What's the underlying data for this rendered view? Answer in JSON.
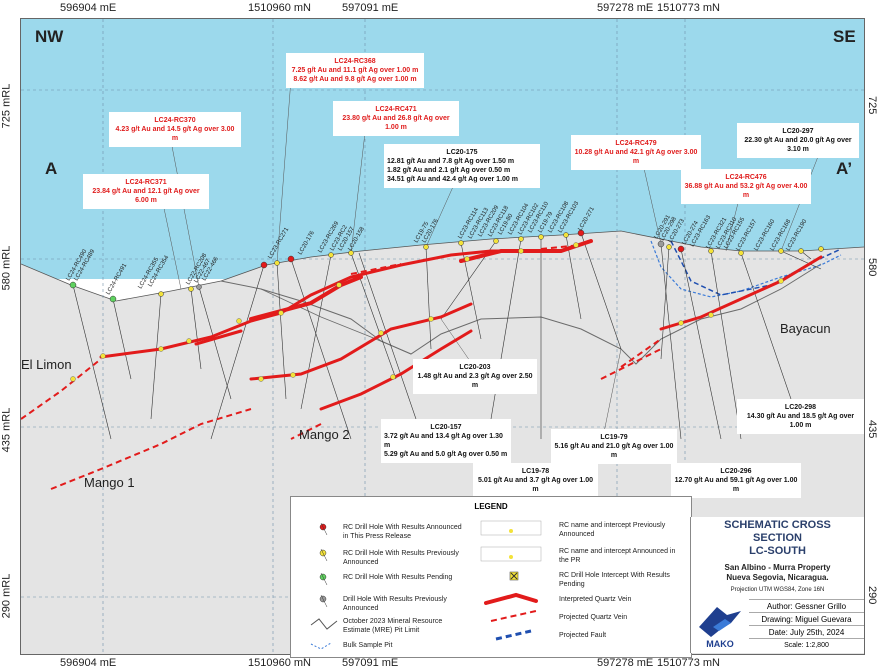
{
  "coords": {
    "top": [
      "596904 mE",
      "1510960 mN",
      "597091 mE",
      "597278 mE",
      "1510773 mN"
    ],
    "bottom": [
      "596904 mE",
      "1510960 mN",
      "597091 mE",
      "597278 mE",
      "1510773 mN"
    ],
    "left": [
      "725 mRL",
      "580 mRL",
      "435 mRL",
      "290 mRL"
    ],
    "right": [
      "725 mRL",
      "580 mRL",
      "435 mRL",
      "290 mRL"
    ]
  },
  "map": {
    "corner_left": "NW",
    "corner_right": "SE",
    "section_a": "A",
    "section_a2": "A’",
    "places": [
      "El Limon",
      "Mango 2",
      "Mango 1",
      "Bayacun"
    ]
  },
  "callouts": [
    {
      "title": "LC24-RC368",
      "lines": [
        "7.25 g/t Au and 11.1 g/t Ag over 1.00 m",
        "8.62 g/t Au and 9.8 g/t Ag over 1.00 m"
      ],
      "color": "red"
    },
    {
      "title": "LC24-RC370",
      "lines": [
        "4.23 g/t Au and 14.5 g/t Ag over 3.00 m"
      ],
      "color": "red"
    },
    {
      "title": "LC24-RC471",
      "lines": [
        "23.80 g/t Au and 26.8 g/t Ag over 1.00 m"
      ],
      "color": "red"
    },
    {
      "title": "LC20-175",
      "lines": [
        "12.81 g/t Au and 7.8 g/t Ag over 1.50 m",
        "1.82 g/t Au and 2.1 g/t Ag over 0.50 m",
        "34.51 g/t Au and 42.4 g/t Ag over 1.00 m"
      ],
      "color": "black"
    },
    {
      "title": "LC24-RC371",
      "lines": [
        "23.84 g/t Au and 12.1 g/t Ag over 6.00 m"
      ],
      "color": "red"
    },
    {
      "title": "LC24-RC479",
      "lines": [
        "10.28 g/t Au and 42.1 g/t Ag over 3.00 m"
      ],
      "color": "red"
    },
    {
      "title": "LC20-297",
      "lines": [
        "22.30 g/t Au and 20.0 g/t Ag over 3.10 m"
      ],
      "color": "black"
    },
    {
      "title": "LC24-RC476",
      "lines": [
        "36.88 g/t Au and 53.2 g/t Ag over 4.00 m"
      ],
      "color": "red"
    },
    {
      "title": "LC20-203",
      "lines": [
        "1.48 g/t Au and 2.3 g/t Ag over 2.50 m"
      ],
      "color": "black"
    },
    {
      "title": "LC20-157",
      "lines": [
        "3.72 g/t Au and 13.4 g/t Ag over 1.30 m",
        "5.29 g/t Au and 5.0 g/t Ag over 0.50 m"
      ],
      "color": "black"
    },
    {
      "title": "LC19-79",
      "lines": [
        "5.16 g/t Au and 21.0 g/t Ag over 1.00 m"
      ],
      "color": "black"
    },
    {
      "title": "LC20-298",
      "lines": [
        "14.30 g/t Au and 18.5 g/t Ag over 1.00 m"
      ],
      "color": "black"
    },
    {
      "title": "LC19-78",
      "lines": [
        "5.01 g/t Au and 3.7 g/t Ag over 1.00 m"
      ],
      "color": "black"
    },
    {
      "title": "LC20-296",
      "lines": [
        "12.70 g/t Au and 59.1 g/t Ag over 1.00 m"
      ],
      "color": "black"
    }
  ],
  "holes": [
    "LC24-RC490",
    "LC24-RC489",
    "LC24-RC491",
    "LC24-RC355",
    "LC24-RC354",
    "LC22-RC208",
    "LC22-467",
    "LC22-466",
    "LC23-RC271",
    "LC20-176",
    "LC23-RC269",
    "LC23-RC2",
    "LC20-157",
    "LC20-158",
    "LC19-75",
    "LC20-176",
    "LC23-RC114",
    "LC23-RC113",
    "LC23-RC209",
    "LC23-RC118",
    "LC19-80",
    "LC23-RC104",
    "LC23-RC102",
    "LC23-RC110",
    "LC19-79",
    "LC23-RC108",
    "LC23-RC103",
    "LC20-271",
    "LC20-291",
    "LC20-298",
    "LC20-273",
    "LC20-274",
    "LC23-RC163",
    "LC23-RC321",
    "LC23-RC310",
    "LC23-RC155",
    "LC23-RC157",
    "LC23-RC160",
    "LC23-RC168",
    "LC23-RC190"
  ],
  "legend": {
    "title": "LEGEND",
    "left": [
      "RC Drill Hole With Results Announced in This Press Release",
      "RC Drill Hole With Results Previously Announced",
      "RC Drill Hole With Results Pending",
      "Drill Hole With Results Previously Announced",
      "October 2023 Mineral Resource Estimate (MRE) Pit Limit",
      "Bulk Sample Pit"
    ],
    "right": [
      "RC name and intercept Previously Announced",
      "RC name and intercept Announced in the PR",
      "RC Drill Hole Intercept With Results Pending",
      "Interpreted Quartz Vein",
      "Projected Quartz Vein",
      "Projected Fault"
    ]
  },
  "title_block": {
    "title": [
      "SCHEMATIC CROSS",
      "SECTION",
      "LC-SOUTH"
    ],
    "subtitle": [
      "San Albino - Murra Property",
      "Nueva Segovia, Nicaragua."
    ],
    "projection": "Projection UTM WGS84, Zone 16N",
    "logo_text": "MAKO",
    "author": "Author: Gessner Grillo",
    "drawing": "Drawing: Miguel Guevara",
    "date": "Date: July 25th, 2024",
    "scale": "Scale: 1:2,800"
  },
  "colors": {
    "sky": "#9cd9ec",
    "ground": "#e4e4e4",
    "vein": "#e21b1b",
    "fault": "#1f4fb0",
    "pit": "#6b6b6b"
  }
}
